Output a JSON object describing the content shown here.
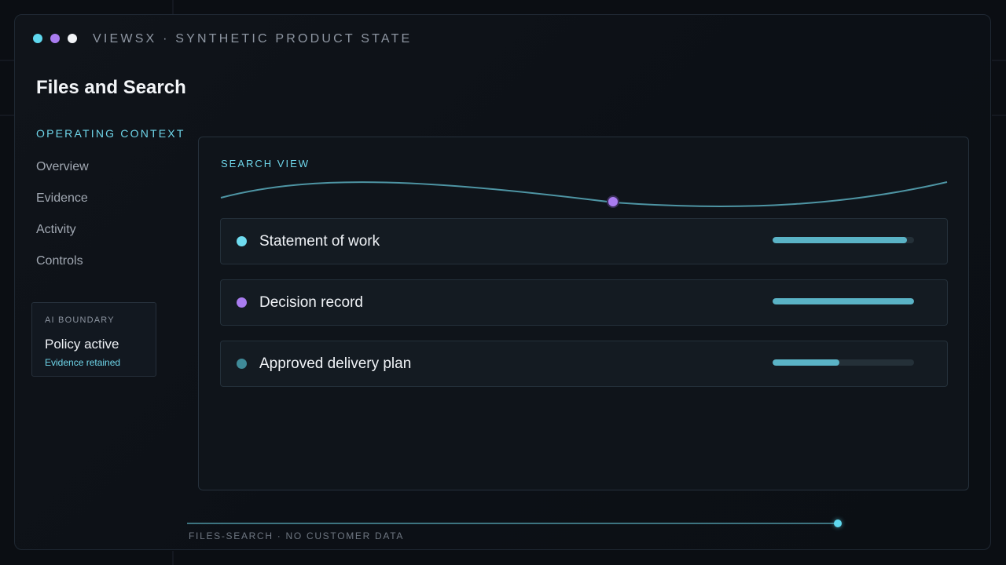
{
  "window": {
    "title": "VIEWSX · SYNTHETIC PRODUCT STATE",
    "dots": [
      "#5fd8ee",
      "#a97cf0",
      "#f2f4f7"
    ]
  },
  "page": {
    "title": "Files and Search"
  },
  "sidebar": {
    "section_label": "OPERATING CONTEXT",
    "items": [
      {
        "label": "Overview"
      },
      {
        "label": "Evidence"
      },
      {
        "label": "Activity"
      },
      {
        "label": "Controls"
      }
    ],
    "ai_card": {
      "label": "AI BOUNDARY",
      "status": "Policy active",
      "sub": "Evidence retained"
    }
  },
  "search_panel": {
    "label": "SEARCH VIEW",
    "rows": [
      {
        "label": "Statement of work",
        "dot_color": "#6fdcf0",
        "progress": 0.95
      },
      {
        "label": "Decision record",
        "dot_color": "#a97cf0",
        "progress": 1.0
      },
      {
        "label": "Approved delivery plan",
        "dot_color": "#3f8a98",
        "progress": 0.47
      }
    ]
  },
  "footer": {
    "text": "FILES-SEARCH · NO CUSTOMER DATA",
    "progress": 1.0
  },
  "colors": {
    "accent": "#6fd6ea",
    "purple": "#a97cf0",
    "bar": "#5ab3c6"
  }
}
